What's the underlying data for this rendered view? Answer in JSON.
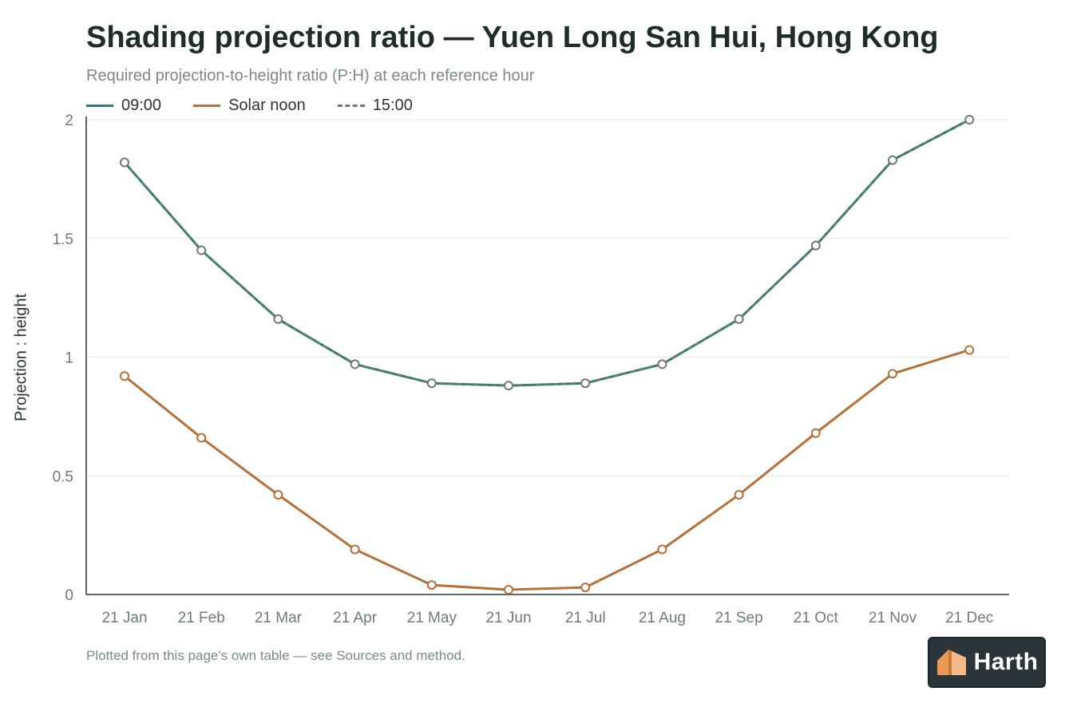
{
  "chart_data": {
    "type": "line",
    "title": "Shading projection ratio — Yuen Long San Hui, Hong Kong",
    "subtitle": "Required projection-to-height ratio (P:H) at each reference hour",
    "xlabel": "",
    "ylabel": "Projection : height",
    "ylim": [
      0,
      2
    ],
    "yticks": [
      "0",
      "0.5",
      "1",
      "1.5",
      "2"
    ],
    "grid": true,
    "legend_position": "top-left",
    "categories": [
      "21 Jan",
      "21 Feb",
      "21 Mar",
      "21 Apr",
      "21 May",
      "21 Jun",
      "21 Jul",
      "21 Aug",
      "21 Sep",
      "21 Oct",
      "21 Nov",
      "21 Dec"
    ],
    "series": [
      {
        "name": "09:00",
        "color": "#2e7d72",
        "dash": false,
        "values": [
          1.82,
          1.45,
          1.16,
          0.97,
          0.89,
          0.88,
          0.89,
          0.97,
          1.16,
          1.47,
          1.83,
          2.0
        ]
      },
      {
        "name": "Solar noon",
        "color": "#b5713a",
        "dash": false,
        "values": [
          0.92,
          0.66,
          0.42,
          0.19,
          0.04,
          0.02,
          0.03,
          0.19,
          0.42,
          0.68,
          0.93,
          1.03
        ]
      },
      {
        "name": "15:00",
        "color": "#6f7a77",
        "dash": true,
        "values": [
          1.82,
          1.45,
          1.16,
          0.97,
          0.89,
          0.88,
          0.89,
          0.97,
          1.16,
          1.47,
          1.83,
          2.0
        ]
      }
    ]
  },
  "footnote": "Plotted from this page's own table — see Sources and method.",
  "logo": {
    "text": "Harth",
    "icon": "harth-house-icon"
  }
}
